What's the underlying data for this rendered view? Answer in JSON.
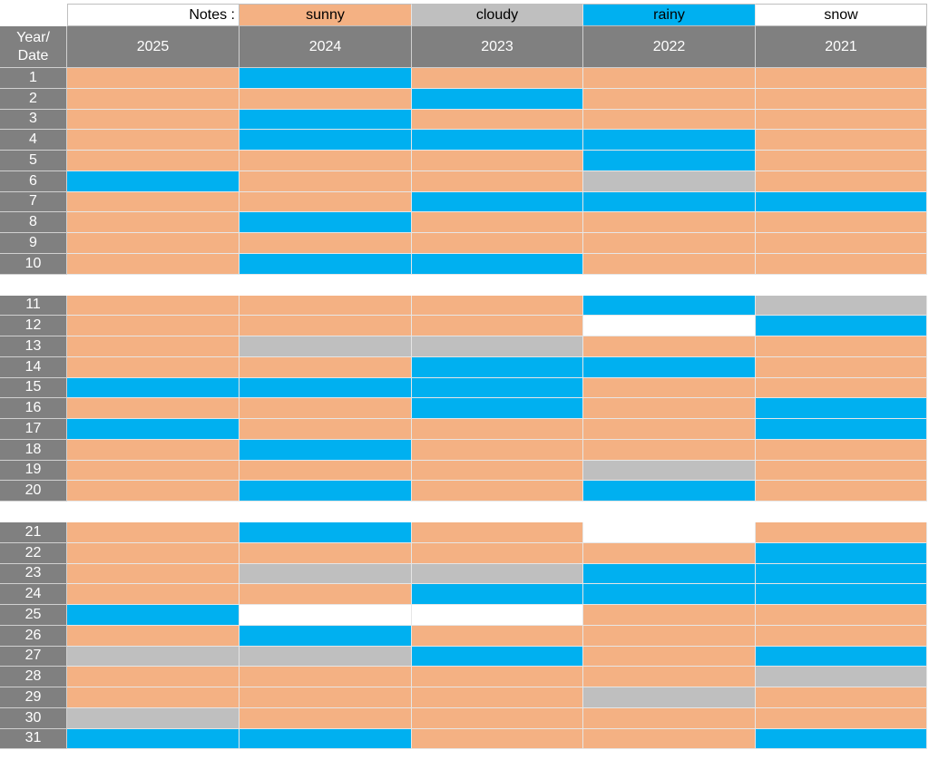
{
  "notes_label": "Notes :",
  "legend": [
    {
      "name": "sunny",
      "color": "#f4b183"
    },
    {
      "name": "cloudy",
      "color": "#bfbfbf"
    },
    {
      "name": "rainy",
      "color": "#00b0f0"
    },
    {
      "name": "snow",
      "color": "#ffffff"
    }
  ],
  "table": {
    "corner": "Year/\nDate",
    "years": [
      "2025",
      "2024",
      "2023",
      "2022",
      "2021"
    ],
    "groups": [
      {
        "rows": [
          {
            "day": "1",
            "weather": [
              "sunny",
              "rainy",
              "sunny",
              "sunny",
              "sunny"
            ]
          },
          {
            "day": "2",
            "weather": [
              "sunny",
              "sunny",
              "rainy",
              "sunny",
              "sunny"
            ]
          },
          {
            "day": "3",
            "weather": [
              "sunny",
              "rainy",
              "sunny",
              "sunny",
              "sunny"
            ]
          },
          {
            "day": "4",
            "weather": [
              "sunny",
              "rainy",
              "rainy",
              "rainy",
              "sunny"
            ]
          },
          {
            "day": "5",
            "weather": [
              "sunny",
              "sunny",
              "sunny",
              "rainy",
              "sunny"
            ]
          },
          {
            "day": "6",
            "weather": [
              "rainy",
              "sunny",
              "sunny",
              "cloudy",
              "sunny"
            ]
          },
          {
            "day": "7",
            "weather": [
              "sunny",
              "sunny",
              "rainy",
              "rainy",
              "rainy"
            ]
          },
          {
            "day": "8",
            "weather": [
              "sunny",
              "rainy",
              "sunny",
              "sunny",
              "sunny"
            ]
          },
          {
            "day": "9",
            "weather": [
              "sunny",
              "sunny",
              "sunny",
              "sunny",
              "sunny"
            ]
          },
          {
            "day": "10",
            "weather": [
              "sunny",
              "rainy",
              "rainy",
              "sunny",
              "sunny"
            ]
          }
        ]
      },
      {
        "rows": [
          {
            "day": "11",
            "weather": [
              "sunny",
              "sunny",
              "sunny",
              "rainy",
              "cloudy"
            ]
          },
          {
            "day": "12",
            "weather": [
              "sunny",
              "sunny",
              "sunny",
              "snow",
              "rainy"
            ]
          },
          {
            "day": "13",
            "weather": [
              "sunny",
              "cloudy",
              "cloudy",
              "sunny",
              "sunny"
            ]
          },
          {
            "day": "14",
            "weather": [
              "sunny",
              "sunny",
              "rainy",
              "rainy",
              "sunny"
            ]
          },
          {
            "day": "15",
            "weather": [
              "rainy",
              "rainy",
              "rainy",
              "sunny",
              "sunny"
            ]
          },
          {
            "day": "16",
            "weather": [
              "sunny",
              "sunny",
              "rainy",
              "sunny",
              "rainy"
            ]
          },
          {
            "day": "17",
            "weather": [
              "rainy",
              "sunny",
              "sunny",
              "sunny",
              "rainy"
            ]
          },
          {
            "day": "18",
            "weather": [
              "sunny",
              "rainy",
              "sunny",
              "sunny",
              "sunny"
            ]
          },
          {
            "day": "19",
            "weather": [
              "sunny",
              "sunny",
              "sunny",
              "cloudy",
              "sunny"
            ]
          },
          {
            "day": "20",
            "weather": [
              "sunny",
              "rainy",
              "sunny",
              "rainy",
              "sunny"
            ]
          }
        ]
      },
      {
        "rows": [
          {
            "day": "21",
            "weather": [
              "sunny",
              "rainy",
              "sunny",
              "snow",
              "sunny"
            ]
          },
          {
            "day": "22",
            "weather": [
              "sunny",
              "sunny",
              "sunny",
              "sunny",
              "rainy"
            ]
          },
          {
            "day": "23",
            "weather": [
              "sunny",
              "cloudy",
              "cloudy",
              "rainy",
              "rainy"
            ]
          },
          {
            "day": "24",
            "weather": [
              "sunny",
              "sunny",
              "rainy",
              "rainy",
              "rainy"
            ]
          },
          {
            "day": "25",
            "weather": [
              "rainy",
              "snow",
              "snow",
              "sunny",
              "sunny"
            ]
          },
          {
            "day": "26",
            "weather": [
              "sunny",
              "rainy",
              "sunny",
              "sunny",
              "sunny"
            ]
          },
          {
            "day": "27",
            "weather": [
              "cloudy",
              "cloudy",
              "rainy",
              "sunny",
              "rainy"
            ]
          },
          {
            "day": "28",
            "weather": [
              "sunny",
              "sunny",
              "sunny",
              "sunny",
              "cloudy"
            ]
          },
          {
            "day": "29",
            "weather": [
              "sunny",
              "sunny",
              "sunny",
              "cloudy",
              "sunny"
            ]
          },
          {
            "day": "30",
            "weather": [
              "cloudy",
              "sunny",
              "sunny",
              "sunny",
              "sunny"
            ]
          },
          {
            "day": "31",
            "weather": [
              "rainy",
              "rainy",
              "sunny",
              "sunny",
              "rainy"
            ]
          }
        ]
      }
    ]
  }
}
